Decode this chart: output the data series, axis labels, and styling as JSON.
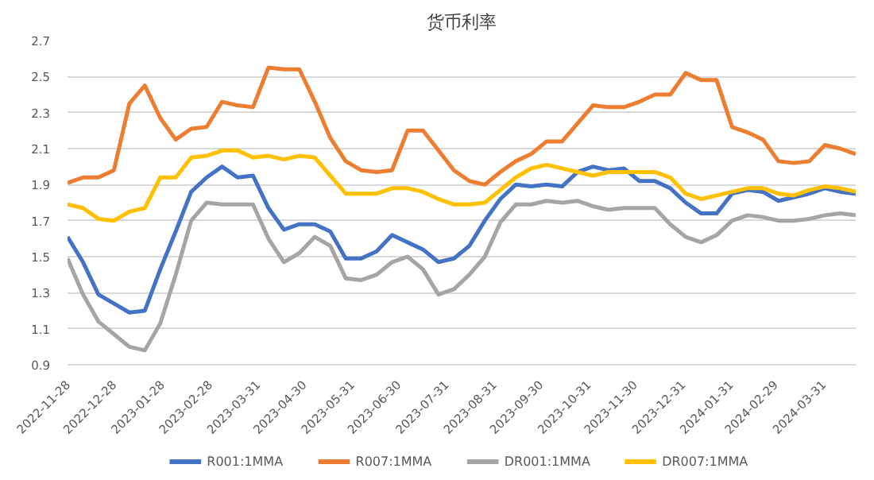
{
  "chart_data": {
    "type": "line",
    "title": "货币利率",
    "x": [
      "2022-11-28",
      "2022-12-08",
      "2022-12-18",
      "2022-12-28",
      "2023-01-07",
      "2023-01-17",
      "2023-01-27",
      "2023-02-06",
      "2023-02-16",
      "2023-02-26",
      "2023-03-08",
      "2023-03-18",
      "2023-03-28",
      "2023-04-07",
      "2023-04-17",
      "2023-04-27",
      "2023-05-07",
      "2023-05-17",
      "2023-05-27",
      "2023-06-06",
      "2023-06-16",
      "2023-06-26",
      "2023-07-06",
      "2023-07-16",
      "2023-07-26",
      "2023-08-05",
      "2023-08-15",
      "2023-08-25",
      "2023-09-04",
      "2023-09-14",
      "2023-09-24",
      "2023-10-04",
      "2023-10-14",
      "2023-10-24",
      "2023-11-03",
      "2023-11-13",
      "2023-11-23",
      "2023-12-03",
      "2023-12-13",
      "2023-12-23",
      "2024-01-02",
      "2024-01-12",
      "2024-01-22",
      "2024-02-01",
      "2024-02-11",
      "2024-02-21",
      "2024-03-02",
      "2024-03-12",
      "2024-03-22",
      "2024-04-01",
      "2024-04-11",
      "2024-04-21"
    ],
    "series": [
      {
        "name": "R001:1MMA",
        "color": "#4472c4",
        "values": [
          1.61,
          1.47,
          1.29,
          1.24,
          1.19,
          1.2,
          1.43,
          1.64,
          1.86,
          1.94,
          2.0,
          1.94,
          1.95,
          1.77,
          1.65,
          1.68,
          1.68,
          1.64,
          1.49,
          1.49,
          1.53,
          1.62,
          1.58,
          1.54,
          1.47,
          1.49,
          1.56,
          1.7,
          1.82,
          1.9,
          1.89,
          1.9,
          1.89,
          1.97,
          2.0,
          1.98,
          1.99,
          1.92,
          1.92,
          1.88,
          1.8,
          1.74,
          1.74,
          1.85,
          1.87,
          1.86,
          1.81,
          1.83,
          1.85,
          1.88,
          1.86,
          1.85
        ]
      },
      {
        "name": "R007:1MMA",
        "color": "#ed7d31",
        "values": [
          1.91,
          1.94,
          1.94,
          1.98,
          2.35,
          2.45,
          2.27,
          2.15,
          2.21,
          2.22,
          2.36,
          2.34,
          2.33,
          2.55,
          2.54,
          2.54,
          2.36,
          2.16,
          2.03,
          1.98,
          1.97,
          1.98,
          2.2,
          2.2,
          2.09,
          1.98,
          1.92,
          1.9,
          1.97,
          2.03,
          2.07,
          2.14,
          2.14,
          2.24,
          2.34,
          2.33,
          2.33,
          2.36,
          2.4,
          2.4,
          2.52,
          2.48,
          2.48,
          2.22,
          2.19,
          2.15,
          2.03,
          2.02,
          2.03,
          2.12,
          2.1,
          2.07
        ]
      },
      {
        "name": "DR001:1MMA",
        "color": "#a5a5a5",
        "values": [
          1.49,
          1.29,
          1.14,
          1.07,
          1.0,
          0.98,
          1.13,
          1.4,
          1.7,
          1.8,
          1.79,
          1.79,
          1.79,
          1.6,
          1.47,
          1.52,
          1.61,
          1.56,
          1.38,
          1.37,
          1.4,
          1.47,
          1.5,
          1.43,
          1.29,
          1.32,
          1.4,
          1.5,
          1.69,
          1.79,
          1.79,
          1.81,
          1.8,
          1.81,
          1.78,
          1.76,
          1.77,
          1.77,
          1.77,
          1.68,
          1.61,
          1.58,
          1.62,
          1.7,
          1.73,
          1.72,
          1.7,
          1.7,
          1.71,
          1.73,
          1.74,
          1.73
        ]
      },
      {
        "name": "DR007:1MMA",
        "color": "#ffc000",
        "values": [
          1.79,
          1.77,
          1.71,
          1.7,
          1.75,
          1.77,
          1.94,
          1.94,
          2.05,
          2.06,
          2.09,
          2.09,
          2.05,
          2.06,
          2.04,
          2.06,
          2.05,
          1.95,
          1.85,
          1.85,
          1.85,
          1.88,
          1.88,
          1.86,
          1.82,
          1.79,
          1.79,
          1.8,
          1.87,
          1.94,
          1.99,
          2.01,
          1.99,
          1.97,
          1.95,
          1.97,
          1.97,
          1.97,
          1.97,
          1.94,
          1.85,
          1.82,
          1.84,
          1.86,
          1.88,
          1.88,
          1.85,
          1.84,
          1.87,
          1.89,
          1.88,
          1.86
        ]
      }
    ],
    "xlim": [
      "2022-11-28",
      "2024-04-21"
    ],
    "xticks": [
      "2022-11-28",
      "2022-12-28",
      "2023-01-28",
      "2023-02-28",
      "2023-03-31",
      "2023-04-30",
      "2023-05-31",
      "2023-06-30",
      "2023-07-31",
      "2023-08-31",
      "2023-09-30",
      "2023-10-31",
      "2023-11-30",
      "2023-12-31",
      "2024-01-31",
      "2024-02-29",
      "2024-03-31"
    ],
    "ylim": [
      0.9,
      2.7
    ],
    "yticks": [
      0.9,
      1.1,
      1.3,
      1.5,
      1.7,
      1.9,
      2.1,
      2.3,
      2.5,
      2.7
    ],
    "grid": "y",
    "legend": "bottom",
    "marker": "none",
    "line_style": "solid"
  }
}
